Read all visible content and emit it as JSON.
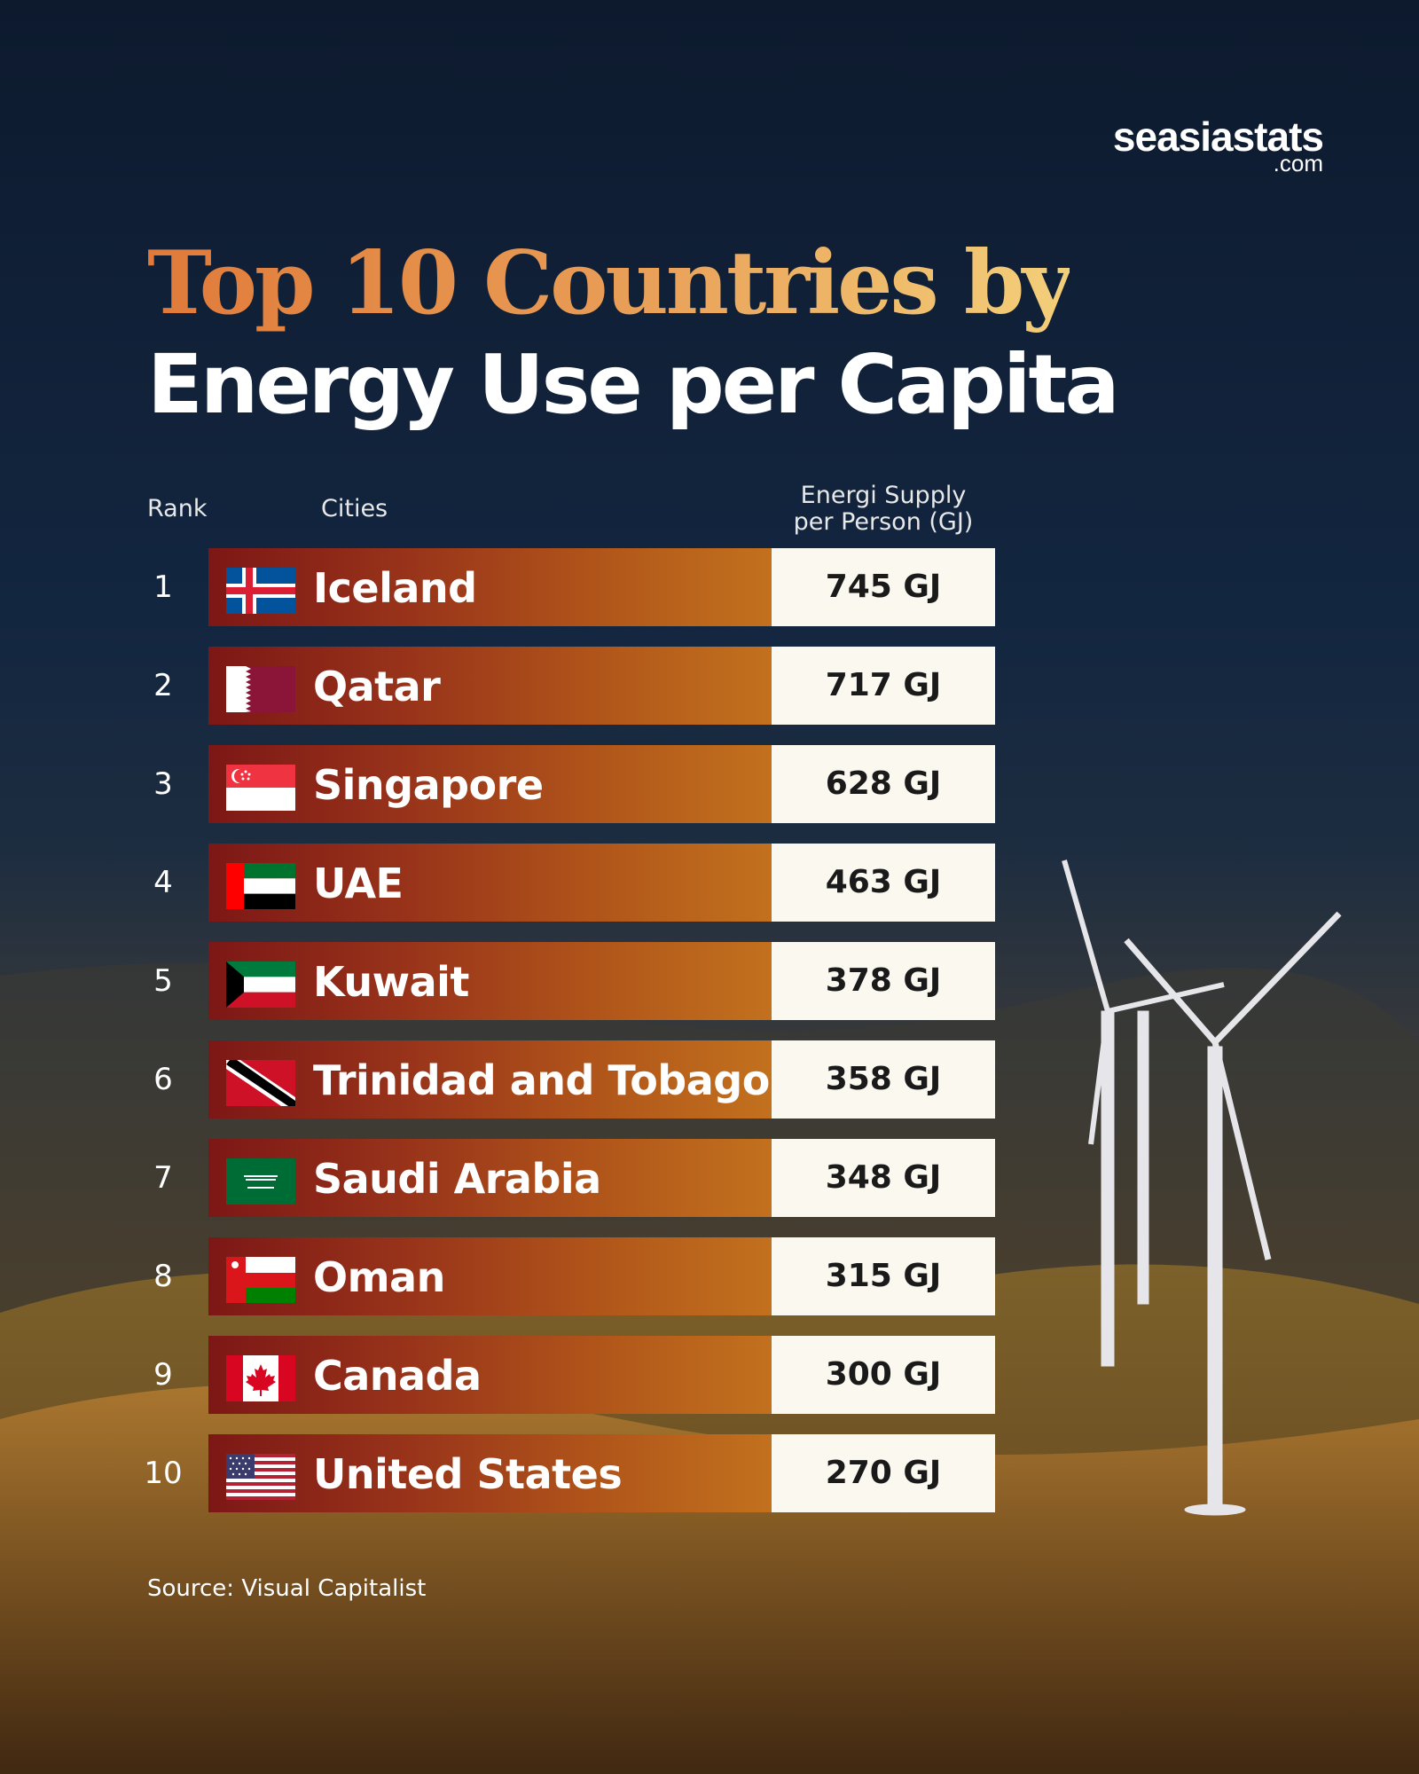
{
  "brand": {
    "name": "seasiastats",
    "tld": ".com"
  },
  "title": {
    "line1": "Top 10 Countries by",
    "line2": "Energy Use per Capita"
  },
  "headers": {
    "rank": "Rank",
    "cities": "Cities",
    "value_line1": "Energi Supply",
    "value_line2": "per Person (GJ)"
  },
  "rows": [
    {
      "rank": "1",
      "country": "Iceland",
      "value_label": "745 GJ",
      "flag_icon": "iceland-flag-icon"
    },
    {
      "rank": "2",
      "country": "Qatar",
      "value_label": "717 GJ",
      "flag_icon": "qatar-flag-icon"
    },
    {
      "rank": "3",
      "country": "Singapore",
      "value_label": "628 GJ",
      "flag_icon": "singapore-flag-icon"
    },
    {
      "rank": "4",
      "country": "UAE",
      "value_label": "463 GJ",
      "flag_icon": "uae-flag-icon"
    },
    {
      "rank": "5",
      "country": "Kuwait",
      "value_label": "378 GJ",
      "flag_icon": "kuwait-flag-icon"
    },
    {
      "rank": "6",
      "country": "Trinidad and Tobago",
      "value_label": "358 GJ",
      "flag_icon": "trinidad-and-tobago-flag-icon"
    },
    {
      "rank": "7",
      "country": "Saudi Arabia",
      "value_label": "348 GJ",
      "flag_icon": "saudi-arabia-flag-icon"
    },
    {
      "rank": "8",
      "country": "Oman",
      "value_label": "315 GJ",
      "flag_icon": "oman-flag-icon"
    },
    {
      "rank": "9",
      "country": "Canada",
      "value_label": "300 GJ",
      "flag_icon": "canada-flag-icon"
    },
    {
      "rank": "10",
      "country": "United States",
      "value_label": "270 GJ",
      "flag_icon": "united-states-flag-icon"
    }
  ],
  "source": "Source: Visual Capitalist",
  "colors": {
    "title_gradient_start": "#e07a3a",
    "title_gradient_end": "#f3cf7a",
    "bar_start": "#7c1716",
    "bar_end": "#c2711e",
    "value_box": "#fbf8ef"
  },
  "chart_data": {
    "type": "table",
    "title": "Top 10 Countries by Energy Use per Capita",
    "columns": [
      "Rank",
      "Cities",
      "Energi Supply per Person (GJ)"
    ],
    "categories": [
      "Iceland",
      "Qatar",
      "Singapore",
      "UAE",
      "Kuwait",
      "Trinidad and Tobago",
      "Saudi Arabia",
      "Oman",
      "Canada",
      "United States"
    ],
    "values": [
      745,
      717,
      628,
      463,
      378,
      358,
      348,
      315,
      300,
      270
    ],
    "unit": "GJ"
  }
}
